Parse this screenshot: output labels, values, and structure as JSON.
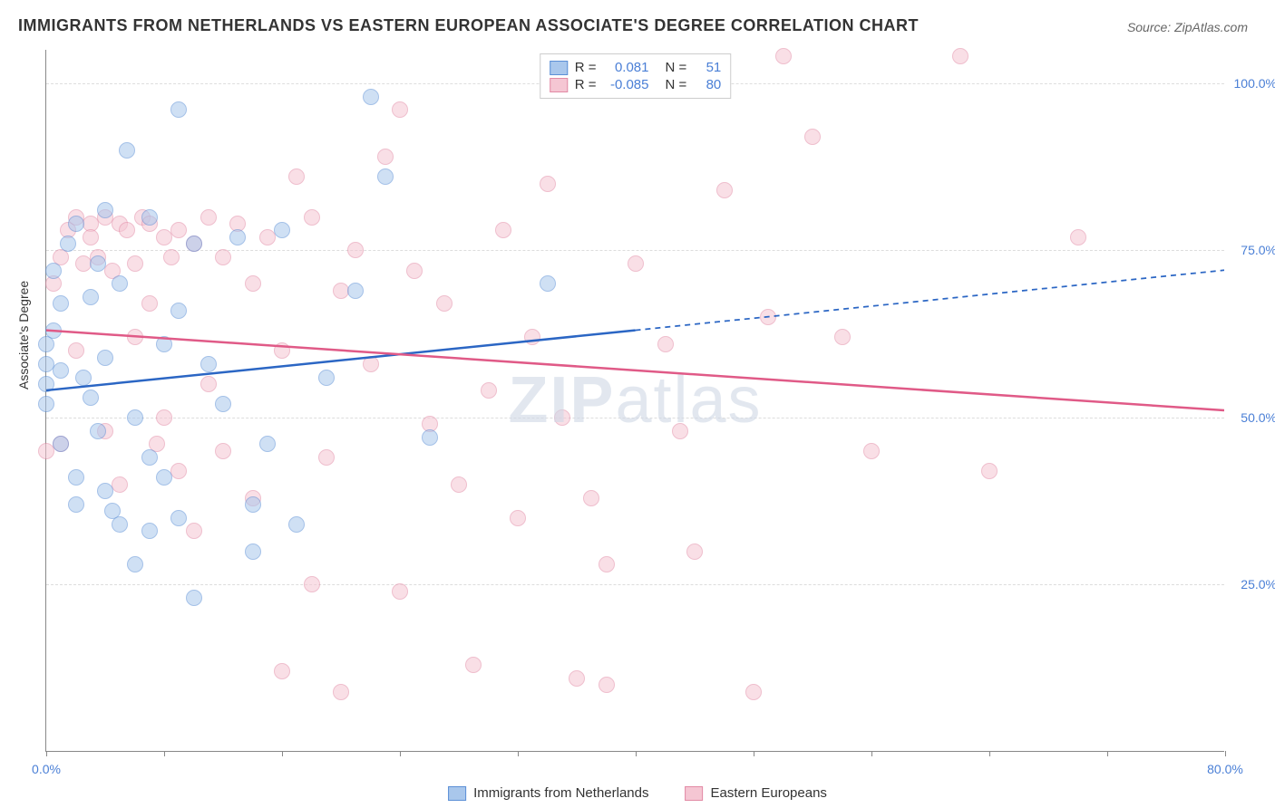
{
  "title": "IMMIGRANTS FROM NETHERLANDS VS EASTERN EUROPEAN ASSOCIATE'S DEGREE CORRELATION CHART",
  "source_label": "Source:",
  "source_value": "ZipAtlas.com",
  "ylabel": "Associate's Degree",
  "watermark": {
    "bold": "ZIP",
    "light": "atlas"
  },
  "chart": {
    "type": "scatter",
    "xlim": [
      0,
      80
    ],
    "ylim": [
      0,
      105
    ],
    "xtick_positions": [
      0,
      8,
      16,
      24,
      32,
      40,
      48,
      56,
      64,
      72,
      80
    ],
    "xtick_labels": {
      "0": "0.0%",
      "80": "80.0%"
    },
    "ytick_positions": [
      25,
      50,
      75,
      100
    ],
    "ytick_labels": {
      "25": "25.0%",
      "50": "50.0%",
      "75": "75.0%",
      "100": "100.0%"
    },
    "background_color": "#ffffff",
    "grid_color": "#dddddd",
    "axis_color": "#888888",
    "tick_label_color": "#4a7fd6",
    "point_radius": 9,
    "point_opacity": 0.55,
    "series": [
      {
        "name": "Immigrants from Netherlands",
        "color_fill": "#a9c7ec",
        "color_stroke": "#5b8fd6",
        "R": "0.081",
        "N": "51",
        "trend": {
          "x1": 0,
          "y1": 54,
          "x2_solid": 40,
          "y2_solid": 63,
          "x2_dash": 80,
          "y2_dash": 72,
          "color": "#2b66c4",
          "width": 2.5
        },
        "points": [
          [
            0,
            61
          ],
          [
            0,
            58
          ],
          [
            0,
            55
          ],
          [
            0,
            52
          ],
          [
            0.5,
            72
          ],
          [
            0.5,
            63
          ],
          [
            1,
            67
          ],
          [
            1,
            57
          ],
          [
            1,
            46
          ],
          [
            1.5,
            76
          ],
          [
            2,
            79
          ],
          [
            2,
            41
          ],
          [
            2,
            37
          ],
          [
            2.5,
            56
          ],
          [
            3,
            68
          ],
          [
            3,
            53
          ],
          [
            3.5,
            73
          ],
          [
            3.5,
            48
          ],
          [
            4,
            81
          ],
          [
            4,
            59
          ],
          [
            4,
            39
          ],
          [
            4.5,
            36
          ],
          [
            5,
            70
          ],
          [
            5,
            34
          ],
          [
            5.5,
            90
          ],
          [
            6,
            50
          ],
          [
            6,
            28
          ],
          [
            7,
            80
          ],
          [
            7,
            44
          ],
          [
            7,
            33
          ],
          [
            8,
            61
          ],
          [
            8,
            41
          ],
          [
            9,
            96
          ],
          [
            9,
            66
          ],
          [
            9,
            35
          ],
          [
            10,
            76
          ],
          [
            10,
            23
          ],
          [
            11,
            58
          ],
          [
            12,
            52
          ],
          [
            13,
            77
          ],
          [
            14,
            37
          ],
          [
            14,
            30
          ],
          [
            15,
            46
          ],
          [
            16,
            78
          ],
          [
            17,
            34
          ],
          [
            19,
            56
          ],
          [
            21,
            69
          ],
          [
            23,
            86
          ],
          [
            26,
            47
          ],
          [
            34,
            70
          ],
          [
            22,
            98
          ]
        ]
      },
      {
        "name": "Eastern Europeans",
        "color_fill": "#f5c6d3",
        "color_stroke": "#e28aa5",
        "R": "-0.085",
        "N": "80",
        "trend": {
          "x1": 0,
          "y1": 63,
          "x2_solid": 80,
          "y2_solid": 51,
          "color": "#e05a87",
          "width": 2.5
        },
        "points": [
          [
            0,
            45
          ],
          [
            0.5,
            70
          ],
          [
            1,
            74
          ],
          [
            1,
            46
          ],
          [
            1.5,
            78
          ],
          [
            2,
            80
          ],
          [
            2,
            60
          ],
          [
            2.5,
            73
          ],
          [
            3,
            79
          ],
          [
            3,
            77
          ],
          [
            3.5,
            74
          ],
          [
            4,
            80
          ],
          [
            4,
            48
          ],
          [
            4.5,
            72
          ],
          [
            5,
            79
          ],
          [
            5,
            40
          ],
          [
            5.5,
            78
          ],
          [
            6,
            73
          ],
          [
            6,
            62
          ],
          [
            6.5,
            80
          ],
          [
            7,
            79
          ],
          [
            7,
            67
          ],
          [
            7.5,
            46
          ],
          [
            8,
            77
          ],
          [
            8,
            50
          ],
          [
            8.5,
            74
          ],
          [
            9,
            78
          ],
          [
            9,
            42
          ],
          [
            10,
            76
          ],
          [
            10,
            33
          ],
          [
            11,
            80
          ],
          [
            11,
            55
          ],
          [
            12,
            74
          ],
          [
            12,
            45
          ],
          [
            13,
            79
          ],
          [
            14,
            70
          ],
          [
            14,
            38
          ],
          [
            15,
            77
          ],
          [
            16,
            60
          ],
          [
            16,
            12
          ],
          [
            17,
            86
          ],
          [
            18,
            80
          ],
          [
            18,
            25
          ],
          [
            19,
            44
          ],
          [
            20,
            69
          ],
          [
            20,
            9
          ],
          [
            21,
            75
          ],
          [
            22,
            58
          ],
          [
            23,
            89
          ],
          [
            24,
            96
          ],
          [
            24,
            24
          ],
          [
            25,
            72
          ],
          [
            26,
            49
          ],
          [
            27,
            67
          ],
          [
            28,
            40
          ],
          [
            29,
            13
          ],
          [
            30,
            54
          ],
          [
            31,
            78
          ],
          [
            32,
            35
          ],
          [
            33,
            62
          ],
          [
            34,
            85
          ],
          [
            35,
            50
          ],
          [
            36,
            11
          ],
          [
            37,
            38
          ],
          [
            38,
            10
          ],
          [
            40,
            73
          ],
          [
            42,
            61
          ],
          [
            43,
            48
          ],
          [
            44,
            30
          ],
          [
            46,
            84
          ],
          [
            48,
            9
          ],
          [
            50,
            104
          ],
          [
            52,
            92
          ],
          [
            54,
            62
          ],
          [
            56,
            45
          ],
          [
            62,
            104
          ],
          [
            64,
            42
          ],
          [
            70,
            77
          ],
          [
            49,
            65
          ],
          [
            38,
            28
          ]
        ]
      }
    ]
  },
  "legend_top": {
    "rows": [
      {
        "swatch_fill": "#a9c7ec",
        "swatch_stroke": "#5b8fd6",
        "r_label": "R =",
        "r_val": "0.081",
        "n_label": "N =",
        "n_val": "51"
      },
      {
        "swatch_fill": "#f5c6d3",
        "swatch_stroke": "#e28aa5",
        "r_label": "R =",
        "r_val": "-0.085",
        "n_label": "N =",
        "n_val": "80"
      }
    ]
  },
  "legend_bottom": {
    "items": [
      {
        "swatch_fill": "#a9c7ec",
        "swatch_stroke": "#5b8fd6",
        "label": "Immigrants from Netherlands"
      },
      {
        "swatch_fill": "#f5c6d3",
        "swatch_stroke": "#e28aa5",
        "label": "Eastern Europeans"
      }
    ]
  }
}
